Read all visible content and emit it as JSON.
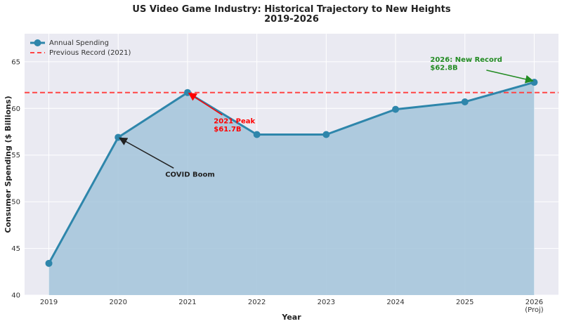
{
  "chart_data": {
    "type": "line",
    "title": "US Video Game Industry: Historical Trajectory to New Heights",
    "subtitle": "2019-2026",
    "xlabel": "Year",
    "ylabel": "Consumer Spending ($ Billions)",
    "x": [
      2019,
      2020,
      2021,
      2022,
      2023,
      2024,
      2025,
      2026
    ],
    "x_tick_labels": [
      "2019",
      "2020",
      "2021",
      "2022",
      "2023",
      "2024",
      "2025",
      "2026\n(Proj)"
    ],
    "series": [
      {
        "name": "Annual Spending",
        "values": [
          43.4,
          56.9,
          61.7,
          57.2,
          57.2,
          59.9,
          60.7,
          62.8
        ],
        "color": "#2e86ab",
        "fill": true
      }
    ],
    "reference_line": {
      "name": "Previous Record (2021)",
      "y": 61.7,
      "color": "#ff4444",
      "style": "dashed"
    },
    "yticks": [
      40,
      45,
      50,
      55,
      60,
      65
    ],
    "ylim": [
      40,
      68
    ],
    "xlim": [
      2018.65,
      2026.35
    ],
    "grid": true,
    "legend_position": "top-left",
    "annotations": [
      {
        "text": "COVID Boom",
        "x": 2020,
        "y": 56.9,
        "text_x": 2020.8,
        "text_y": 53.3,
        "color": "#222222"
      },
      {
        "text": "2021 Peak\n$61.7B",
        "x": 2021,
        "y": 61.7,
        "text_x": 2021.5,
        "text_y": 59.0,
        "color": "#ff0000"
      },
      {
        "text": "2026: New Record\n$62.8B",
        "x": 2026,
        "y": 62.8,
        "text_x": 2024.5,
        "text_y": 65.0,
        "color": "#228b22"
      }
    ]
  }
}
